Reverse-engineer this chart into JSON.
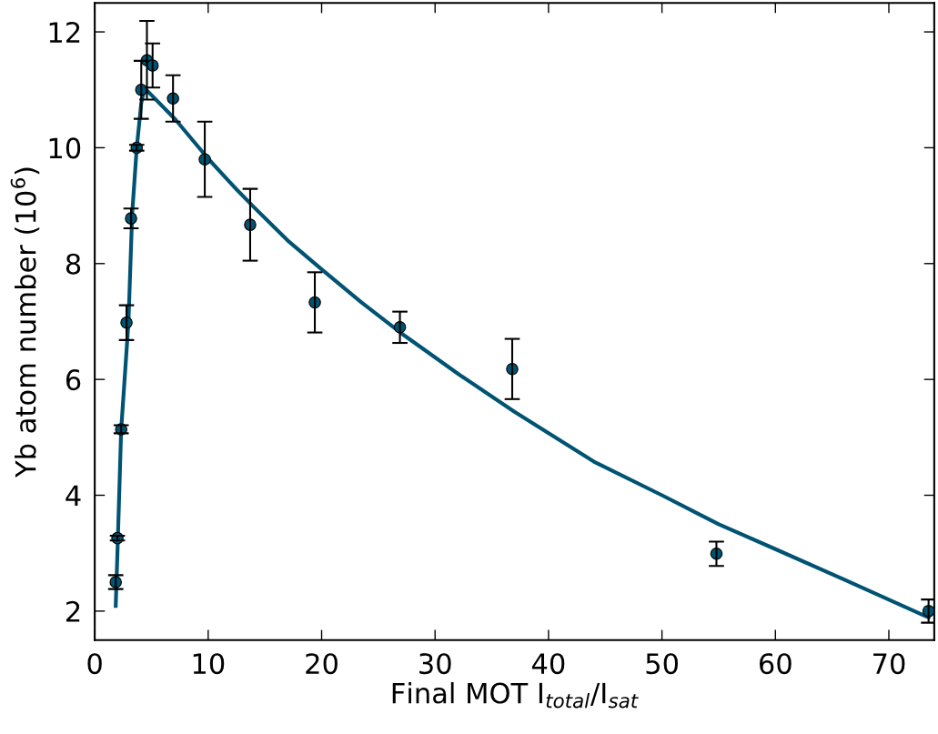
{
  "chart_data": {
    "type": "scatter",
    "xlabel": "Final MOT I$_{total}$/I$_{sat}$",
    "ylabel": "Yb atom number (10$^{6}$)",
    "xlim": [
      0,
      74
    ],
    "xticks": [
      0,
      10,
      20,
      30,
      40,
      50,
      60,
      70
    ],
    "ylim": [
      1.5,
      12.5
    ],
    "yticks": [
      2,
      4,
      6,
      8,
      10,
      12
    ],
    "grid": false,
    "legend": false,
    "series": [
      {
        "type": "line",
        "color": "#005372",
        "marker": "none",
        "line_style": "solid",
        "x": [
          1.85,
          2.0,
          2.33,
          2.97,
          3.3,
          3.7,
          4.1,
          4.4,
          7.1,
          10,
          12.5,
          14,
          17,
          20,
          23.5,
          27,
          32,
          37,
          44,
          50,
          55,
          60,
          66,
          73.5
        ],
        "values": [
          2.09,
          3.0,
          5.13,
          6.98,
          8.86,
          9.99,
          10.77,
          11.03,
          10.49,
          9.81,
          9.28,
          8.98,
          8.4,
          7.9,
          7.33,
          6.8,
          6.1,
          5.44,
          4.58,
          4.0,
          3.5,
          3.07,
          2.55,
          1.89
        ]
      },
      {
        "color": "#005372",
        "marker": "circle",
        "x": [
          1.85,
          2.0,
          2.33,
          2.8,
          3.2,
          3.7,
          4.1,
          4.6,
          5.1,
          6.9,
          9.7,
          13.7,
          19.4,
          26.9,
          36.8,
          54.8,
          73.5
        ],
        "values": [
          2.5,
          3.26,
          5.14,
          6.98,
          8.78,
          10.0,
          11.0,
          11.51,
          11.42,
          10.85,
          9.8,
          8.67,
          7.33,
          6.9,
          6.18,
          2.99,
          2.0
        ],
        "errors": [
          0.12,
          0.04,
          0.07,
          0.3,
          0.17,
          0.05,
          0.5,
          0.68,
          0.38,
          0.4,
          0.65,
          0.62,
          0.52,
          0.27,
          0.52,
          0.21,
          0.2
        ]
      }
    ]
  }
}
